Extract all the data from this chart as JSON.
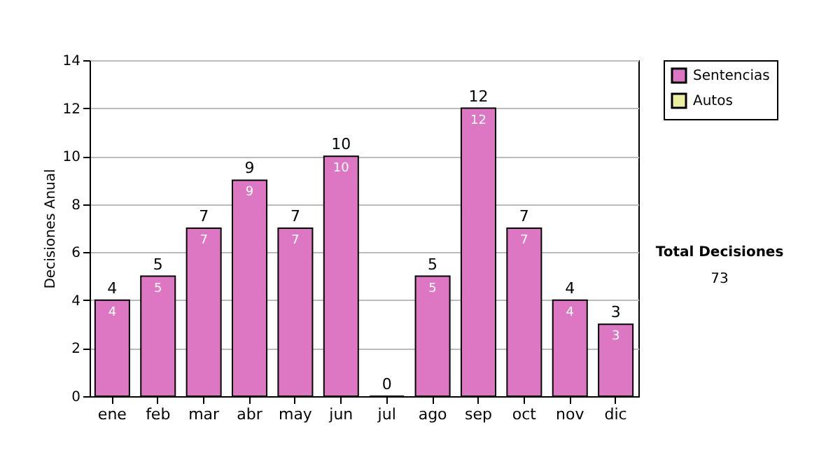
{
  "chart_data": {
    "type": "bar",
    "stacked": true,
    "ylabel": "Decisiones Anual",
    "categories": [
      "ene",
      "feb",
      "mar",
      "abr",
      "may",
      "jun",
      "jul",
      "ago",
      "sep",
      "oct",
      "nov",
      "dic"
    ],
    "series": [
      {
        "name": "Sentencias",
        "color": "#dd77c4",
        "values": [
          4,
          5,
          7,
          9,
          7,
          10,
          0,
          5,
          12,
          7,
          4,
          3
        ],
        "value_labels": [
          "4",
          "5",
          "7",
          "9",
          "7",
          "10",
          null,
          "5",
          "12",
          "7",
          "4",
          "3"
        ]
      },
      {
        "name": "Autos",
        "color": "#eeeea0",
        "values": [
          null,
          null,
          null,
          null,
          null,
          null,
          null,
          null,
          null,
          null,
          null,
          null
        ]
      }
    ],
    "totals": [
      "4",
      "5",
      "7",
      "9",
      "7",
      "10",
      "0",
      "5",
      "12",
      "7",
      "4",
      "3"
    ],
    "ylim": [
      0,
      14
    ],
    "yticks": [
      0,
      2,
      4,
      6,
      8,
      10,
      12,
      14
    ],
    "grid": "y",
    "legend": "right",
    "annotations": [
      "Total Decisiones",
      "73"
    ]
  }
}
